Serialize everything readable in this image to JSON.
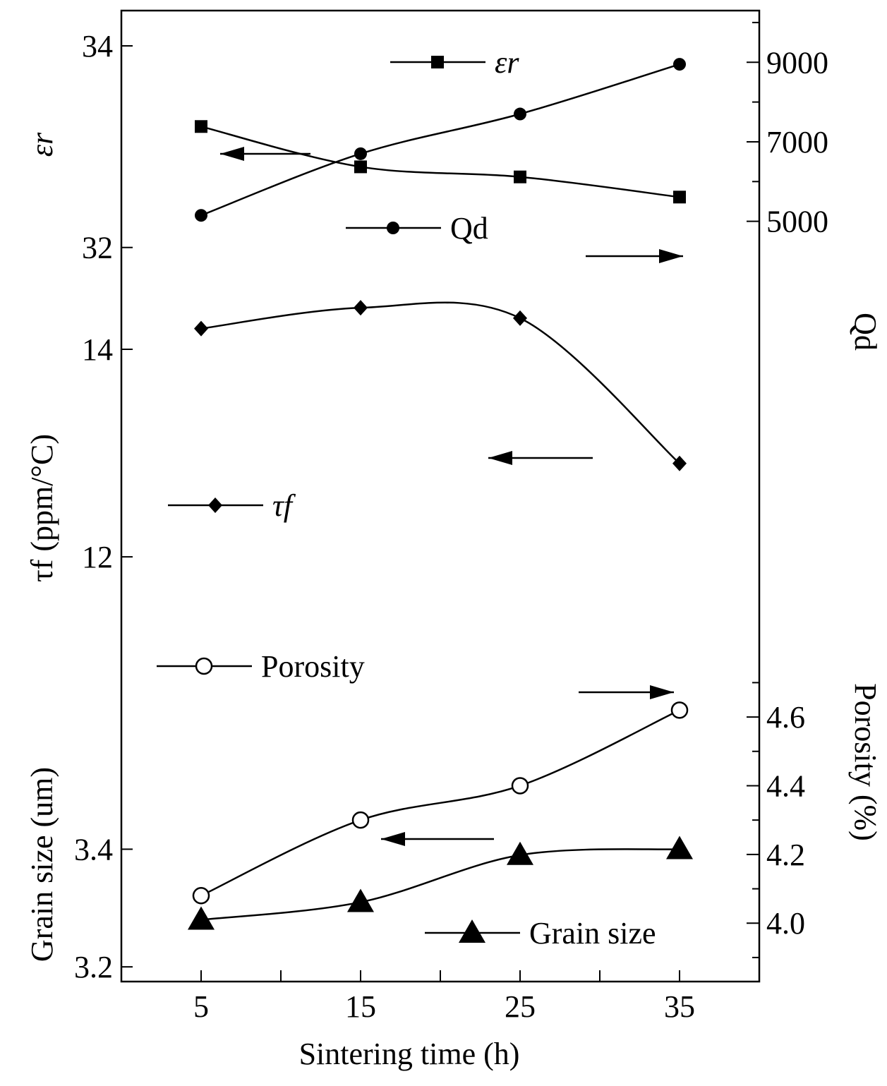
{
  "chart_data": {
    "type": "line",
    "xlabel": "Sintering time (h)",
    "x_ticks": [
      5,
      15,
      25,
      35
    ],
    "x": [
      5,
      15,
      25,
      35
    ],
    "xlim": [
      0,
      40
    ],
    "panels": [
      {
        "name": "er",
        "left_axis": {
          "label": "εr",
          "ticks": [
            32,
            34
          ],
          "range": [
            31.865,
            34.35
          ]
        },
        "series": [
          {
            "name": "εr",
            "legend": "εr",
            "marker": "square",
            "axis": "left",
            "values": [
              33.2,
              32.8,
              32.7,
              32.5
            ]
          },
          {
            "name": "Qd",
            "legend": "Qd",
            "marker": "circle",
            "axis": "right",
            "values": [
              5150,
              6700,
              7700,
              8950
            ]
          }
        ],
        "right_axis": {
          "label": "Qd",
          "ticks": [
            5000,
            7000,
            9000
          ],
          "range": [
            4000,
            10300
          ]
        }
      },
      {
        "name": "tf",
        "left_axis": {
          "label": "τf (ppm/°C)",
          "ticks": [
            12,
            14
          ],
          "range": [
            11.45,
            14.85
          ]
        },
        "series": [
          {
            "name": "τf",
            "legend": "τf",
            "marker": "diamond",
            "axis": "left",
            "values": [
              14.2,
              14.4,
              14.3,
              12.9
            ]
          }
        ]
      },
      {
        "name": "grain",
        "left_axis": {
          "label": "Grain size (um)",
          "ticks": [
            3.2,
            3.4
          ],
          "range": [
            3.175,
            3.8
          ]
        },
        "right_axis": {
          "label": "Porosity (%)",
          "ticks": [
            4.0,
            4.2,
            4.4,
            4.6
          ],
          "range": [
            3.83,
            4.9
          ]
        },
        "series": [
          {
            "name": "Porosity",
            "legend": "Porosity",
            "marker": "open-circle",
            "axis": "right",
            "values": [
              4.08,
              4.3,
              4.4,
              4.62
            ]
          },
          {
            "name": "Grain size",
            "legend": "Grain size",
            "marker": "triangle",
            "axis": "left",
            "values": [
              3.28,
              3.31,
              3.39,
              3.4
            ]
          }
        ]
      }
    ]
  }
}
